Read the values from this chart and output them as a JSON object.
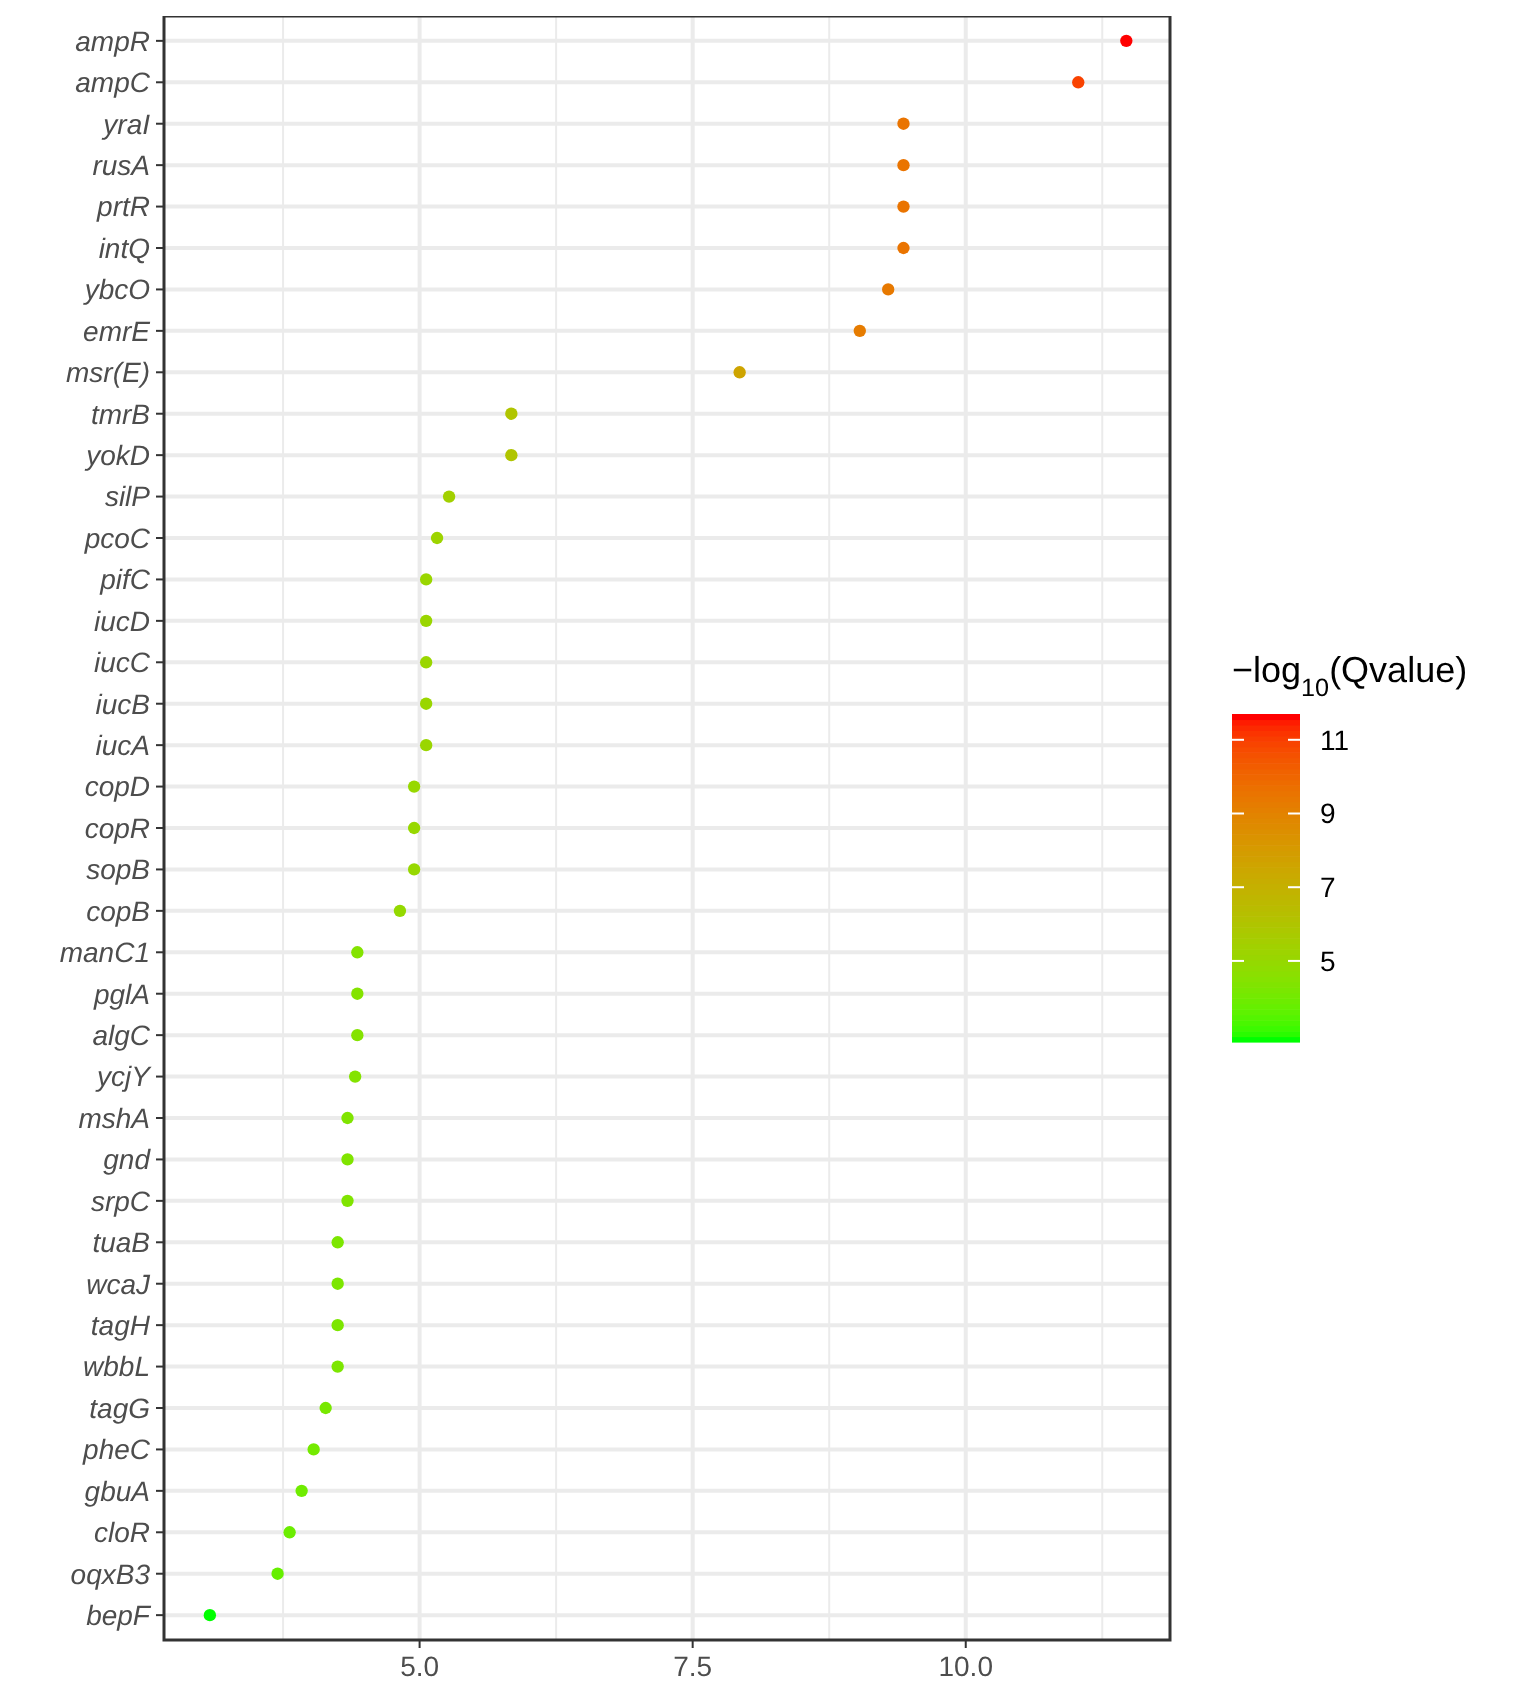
{
  "chart_data": {
    "type": "scatter",
    "orientation": "horizontal",
    "legend_title": "−log$_{10}$(Qvalue)",
    "grid": true,
    "marker": "circle",
    "categories": [
      "ampR",
      "ampC",
      "yraI",
      "rusA",
      "prtR",
      "intQ",
      "ybcO",
      "emrE",
      "msr(E)",
      "tmrB",
      "yokD",
      "silP",
      "pcoC",
      "pifC",
      "iucD",
      "iucC",
      "iucB",
      "iucA",
      "copD",
      "copR",
      "sopB",
      "copB",
      "manC1",
      "pglA",
      "algC",
      "ycjY",
      "mshA",
      "gnd",
      "srpC",
      "tuaB",
      "wcaJ",
      "tagH",
      "wbbL",
      "tagG",
      "pheC",
      "gbuA",
      "cloR",
      "oqxB3",
      "bepF"
    ],
    "values": [
      11.47,
      11.03,
      9.43,
      9.43,
      9.43,
      9.43,
      9.29,
      9.03,
      7.93,
      5.84,
      5.84,
      5.27,
      5.16,
      5.06,
      5.06,
      5.06,
      5.06,
      5.06,
      4.95,
      4.95,
      4.95,
      4.82,
      4.43,
      4.43,
      4.43,
      4.41,
      4.34,
      4.34,
      4.34,
      4.25,
      4.25,
      4.25,
      4.25,
      4.14,
      4.03,
      3.92,
      3.81,
      3.7,
      3.08
    ],
    "cvalues": [
      11.7,
      11.0,
      9.6,
      9.6,
      9.6,
      9.6,
      9.4,
      9.3,
      7.6,
      6.0,
      6.0,
      5.4,
      5.2,
      5.1,
      5.1,
      5.1,
      5.1,
      5.1,
      5.0,
      5.0,
      5.0,
      4.9,
      4.4,
      4.4,
      4.4,
      4.4,
      4.3,
      4.3,
      4.3,
      4.2,
      4.2,
      4.2,
      4.2,
      4.1,
      4.0,
      3.9,
      3.8,
      3.7,
      2.8
    ],
    "xlim": [
      2.66,
      11.87
    ],
    "xticks": [
      {
        "value": 5,
        "label": "5.0"
      },
      {
        "value": 7.5,
        "label": "7.5"
      },
      {
        "value": 10,
        "label": "10.0"
      }
    ],
    "clim": [
      2.8,
      11.7
    ],
    "cticks": [
      5,
      7,
      9,
      11
    ]
  }
}
